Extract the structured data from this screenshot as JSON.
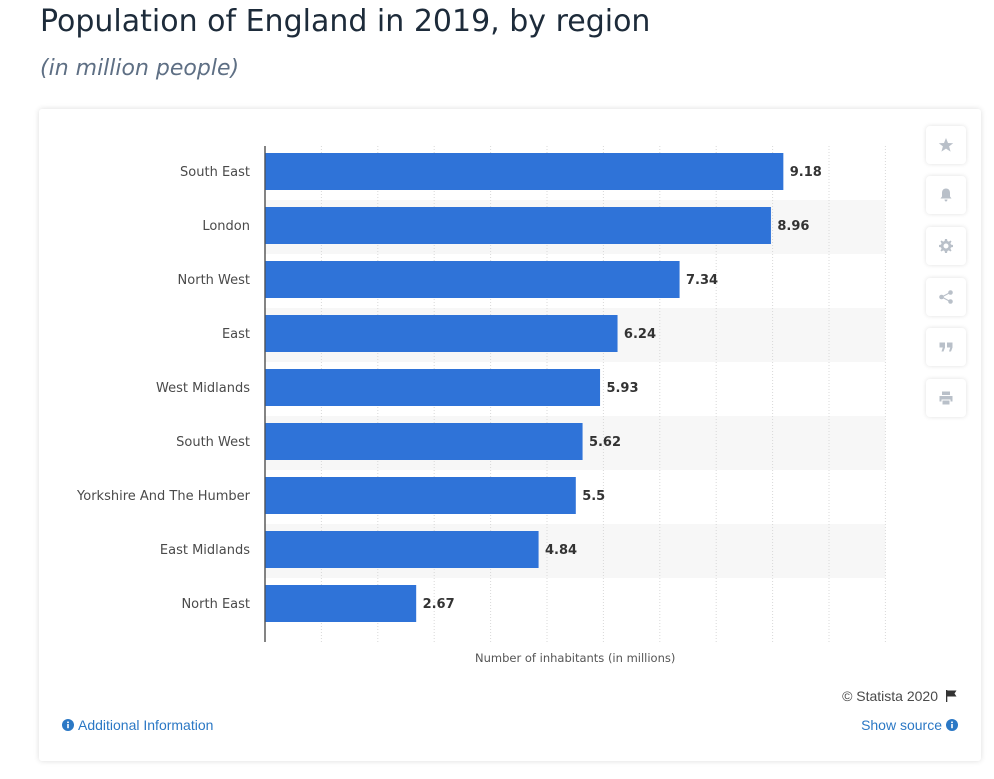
{
  "header": {
    "title": "Population of England in 2019, by region",
    "subtitle": "(in million people)"
  },
  "toolbar": {
    "icons": [
      "star-icon",
      "bell-icon",
      "gear-icon",
      "share-icon",
      "quote-icon",
      "print-icon"
    ]
  },
  "footer": {
    "copyright": "© Statista 2020",
    "additional_info": "Additional Information",
    "show_source": "Show source"
  },
  "colors": {
    "bar": "#2f73d8",
    "stripe": "#f7f7f7",
    "link": "#2b78c5",
    "title": "#1d2b3a"
  },
  "chart_data": {
    "type": "bar",
    "orientation": "horizontal",
    "categories": [
      "South East",
      "London",
      "North West",
      "East",
      "West Midlands",
      "South West",
      "Yorkshire And The Humber",
      "East Midlands",
      "North East"
    ],
    "values": [
      9.18,
      8.96,
      7.34,
      6.24,
      5.93,
      5.62,
      5.5,
      4.84,
      2.67
    ],
    "data_labels": [
      "9.18",
      "8.96",
      "7.34",
      "6.24",
      "5.93",
      "5.62",
      "5.5",
      "4.84",
      "2.67"
    ],
    "xlabel": "Number of inhabitants (in millions)",
    "xlim": [
      0,
      11
    ],
    "grid": true,
    "legend": "none"
  }
}
